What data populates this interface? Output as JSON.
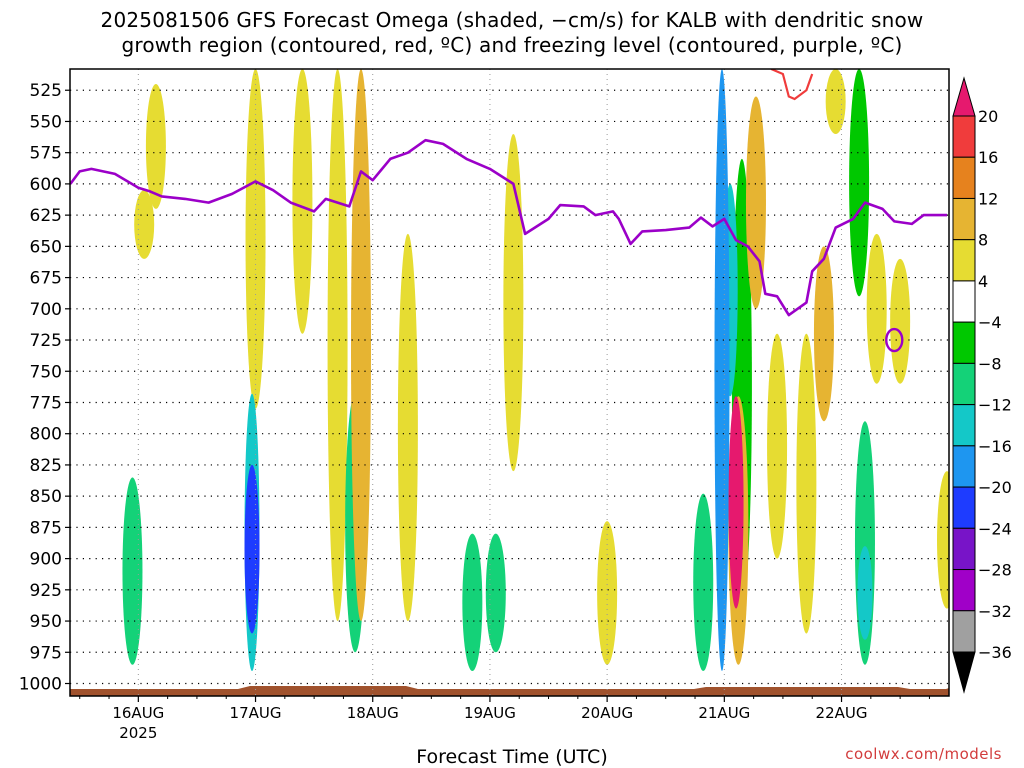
{
  "title_line1": "2025081506 GFS Forecast Omega (shaded, −cm/s) for KALB with dendritic snow",
  "title_line2": "growth region (contoured, red, ºC) and freezing level (contoured, purple, ºC)",
  "xlabel": "Forecast Time (UTC)",
  "credit": "coolwx.com/models",
  "chart_data": {
    "type": "heatmap",
    "y_ticks": [
      "525",
      "550",
      "575",
      "600",
      "625",
      "650",
      "675",
      "700",
      "725",
      "750",
      "775",
      "800",
      "825",
      "850",
      "875",
      "900",
      "925",
      "950",
      "975",
      "1000"
    ],
    "x_ticks": [
      {
        "day": 16,
        "label": "16AUG",
        "sublabel": "2025"
      },
      {
        "day": 17,
        "label": "17AUG",
        "sublabel": ""
      },
      {
        "day": 18,
        "label": "18AUG",
        "sublabel": ""
      },
      {
        "day": 19,
        "label": "19AUG",
        "sublabel": ""
      },
      {
        "day": 20,
        "label": "20AUG",
        "sublabel": ""
      },
      {
        "day": 21,
        "label": "21AUG",
        "sublabel": ""
      },
      {
        "day": 22,
        "label": "22AUG",
        "sublabel": ""
      }
    ],
    "x_range_days": [
      15.417,
      22.917
    ],
    "y_range_hpa": [
      508,
      1010
    ],
    "colorbar": {
      "labels": [
        "20",
        "16",
        "12",
        "8",
        "4",
        "−4",
        "−8",
        "−12",
        "−16",
        "−20",
        "−24",
        "−28",
        "−32",
        "−36"
      ],
      "colors": [
        "#e6196e",
        "#f03c3c",
        "#e6821e",
        "#e6b432",
        "#e6dc32",
        "#ffffff",
        "#00c800",
        "#14d278",
        "#14c8c8",
        "#1e96f0",
        "#1e3cff",
        "#7814c8",
        "#a000c8",
        "#a0a0a0",
        "#000000"
      ]
    },
    "freezing_level": {
      "color": "#9b00c8",
      "points": [
        [
          15.42,
          600
        ],
        [
          15.5,
          590
        ],
        [
          15.6,
          588
        ],
        [
          15.8,
          592
        ],
        [
          16.0,
          603
        ],
        [
          16.1,
          606
        ],
        [
          16.2,
          610
        ],
        [
          16.4,
          612
        ],
        [
          16.6,
          615
        ],
        [
          16.8,
          608
        ],
        [
          17.0,
          598
        ],
        [
          17.15,
          605
        ],
        [
          17.3,
          615
        ],
        [
          17.5,
          622
        ],
        [
          17.6,
          612
        ],
        [
          17.8,
          618
        ],
        [
          17.9,
          590
        ],
        [
          18.0,
          597
        ],
        [
          18.15,
          580
        ],
        [
          18.3,
          575
        ],
        [
          18.45,
          565
        ],
        [
          18.6,
          568
        ],
        [
          18.8,
          580
        ],
        [
          19.0,
          588
        ],
        [
          19.2,
          600
        ],
        [
          19.3,
          640
        ],
        [
          19.5,
          628
        ],
        [
          19.6,
          617
        ],
        [
          19.8,
          618
        ],
        [
          19.9,
          625
        ],
        [
          20.05,
          622
        ],
        [
          20.1,
          628
        ],
        [
          20.2,
          648
        ],
        [
          20.3,
          638
        ],
        [
          20.5,
          637
        ],
        [
          20.7,
          635
        ],
        [
          20.8,
          627
        ],
        [
          20.9,
          634
        ],
        [
          21.0,
          628
        ],
        [
          21.1,
          645
        ],
        [
          21.2,
          650
        ],
        [
          21.3,
          662
        ],
        [
          21.35,
          688
        ],
        [
          21.45,
          690
        ],
        [
          21.55,
          705
        ],
        [
          21.7,
          695
        ],
        [
          21.75,
          670
        ],
        [
          21.85,
          660
        ],
        [
          21.95,
          635
        ],
        [
          22.1,
          628
        ],
        [
          22.2,
          615
        ],
        [
          22.35,
          620
        ],
        [
          22.45,
          630
        ],
        [
          22.6,
          632
        ],
        [
          22.7,
          625
        ],
        [
          22.9,
          625
        ]
      ]
    },
    "dgz_contour": {
      "color": "#f03c3c",
      "points": [
        [
          21.4,
          508
        ],
        [
          21.5,
          512
        ],
        [
          21.55,
          530
        ],
        [
          21.6,
          532
        ],
        [
          21.7,
          525
        ],
        [
          21.75,
          512
        ]
      ]
    },
    "omega_regions": [
      {
        "x": 15.95,
        "p0": 835,
        "p1": 985,
        "value": -9
      },
      {
        "x": 16.97,
        "p0": 768,
        "p1": 990,
        "value": -13
      },
      {
        "x": 16.97,
        "p0": 825,
        "p1": 960,
        "value": -22
      },
      {
        "x": 17.85,
        "p0": 768,
        "p1": 975,
        "value": -8
      },
      {
        "x": 18.85,
        "p0": 880,
        "p1": 990,
        "value": -8
      },
      {
        "x": 19.05,
        "p0": 880,
        "p1": 975,
        "value": -8
      },
      {
        "x": 20.82,
        "p0": 848,
        "p1": 990,
        "value": -10
      },
      {
        "x": 20.98,
        "p0": 508,
        "p1": 990,
        "value": -16
      },
      {
        "x": 21.05,
        "p0": 600,
        "p1": 770,
        "value": -14
      },
      {
        "x": 21.15,
        "p0": 580,
        "p1": 940,
        "value": -7
      },
      {
        "x": 22.15,
        "p0": 508,
        "p1": 690,
        "value": -6
      },
      {
        "x": 22.2,
        "p0": 790,
        "p1": 985,
        "value": -9
      },
      {
        "x": 22.2,
        "p0": 890,
        "p1": 965,
        "value": -13
      },
      {
        "x": 16.05,
        "p0": 605,
        "p1": 660,
        "value": 5
      },
      {
        "x": 16.15,
        "p0": 520,
        "p1": 620,
        "value": 5
      },
      {
        "x": 17.0,
        "p0": 508,
        "p1": 780,
        "value": 6
      },
      {
        "x": 17.4,
        "p0": 508,
        "p1": 720,
        "value": 5
      },
      {
        "x": 17.7,
        "p0": 508,
        "p1": 950,
        "value": 6
      },
      {
        "x": 17.9,
        "p0": 508,
        "p1": 950,
        "value": 9
      },
      {
        "x": 18.3,
        "p0": 640,
        "p1": 950,
        "value": 5
      },
      {
        "x": 19.2,
        "p0": 560,
        "p1": 830,
        "value": 4
      },
      {
        "x": 20.0,
        "p0": 870,
        "p1": 985,
        "value": 5
      },
      {
        "x": 21.12,
        "p0": 770,
        "p1": 985,
        "value": 8
      },
      {
        "x": 21.1,
        "p0": 770,
        "p1": 940,
        "value": 22
      },
      {
        "x": 21.27,
        "p0": 530,
        "p1": 700,
        "value": 9
      },
      {
        "x": 21.45,
        "p0": 720,
        "p1": 900,
        "value": 5
      },
      {
        "x": 21.7,
        "p0": 720,
        "p1": 960,
        "value": 5
      },
      {
        "x": 21.85,
        "p0": 650,
        "p1": 790,
        "value": 9
      },
      {
        "x": 21.95,
        "p0": 508,
        "p1": 560,
        "value": 5
      },
      {
        "x": 22.3,
        "p0": 640,
        "p1": 760,
        "value": 6
      },
      {
        "x": 22.5,
        "p0": 660,
        "p1": 760,
        "value": 5
      },
      {
        "x": 22.9,
        "p0": 830,
        "p1": 940,
        "value": 5
      }
    ]
  }
}
